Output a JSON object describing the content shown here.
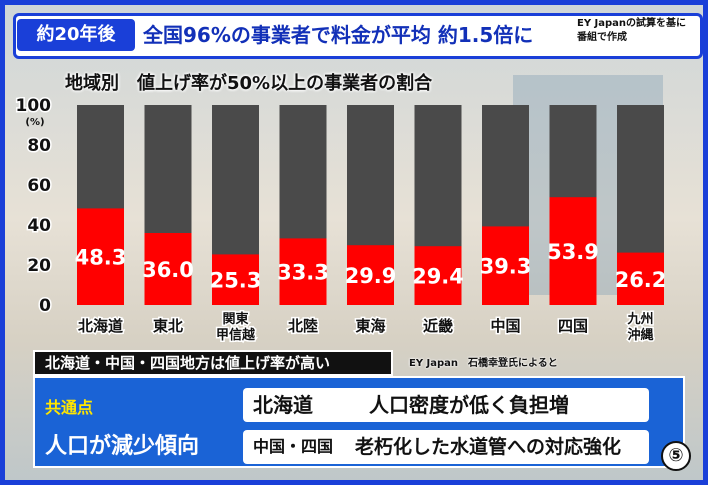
{
  "header": {
    "badge": "約20年後",
    "headline": "全国96%の事業者で料金が平均 約1.5倍に",
    "source_note_line1": "EY Japanの試算を基に",
    "source_note_line2": "番組で作成"
  },
  "chart_data": {
    "type": "bar",
    "title": "地域別　値上げ率が50%以上の事業者の割合",
    "categories": [
      "北海道",
      "東北",
      "関東甲信越",
      "北陸",
      "東海",
      "近畿",
      "中国",
      "四国",
      "九州沖縄"
    ],
    "category_lines": [
      [
        "北海道"
      ],
      [
        "東北"
      ],
      [
        "関東",
        "甲信越"
      ],
      [
        "北陸"
      ],
      [
        "東海"
      ],
      [
        "近畿"
      ],
      [
        "中国"
      ],
      [
        "四国"
      ],
      [
        "九州",
        "沖縄"
      ]
    ],
    "values": [
      48.3,
      36.0,
      25.3,
      33.3,
      29.9,
      29.4,
      39.3,
      53.9,
      26.2
    ],
    "value_labels": [
      "48.3",
      "36.0",
      "25.3",
      "33.3",
      "29.9",
      "29.4",
      "39.3",
      "53.9",
      "26.2"
    ],
    "ylim": [
      0,
      100
    ],
    "yticks": [
      0,
      20,
      40,
      60,
      80,
      100
    ],
    "yunit": "(%)",
    "colors": {
      "value": "#ff0000",
      "remainder": "#4a4a4a"
    }
  },
  "subhead": "北海道・中国・四国地方は値上げ率が高い",
  "attribution": "EY Japan　石橋幸登氏によると",
  "common_point": {
    "label": "共通点",
    "value": "人口が減少傾向"
  },
  "reasons": [
    {
      "region": "北海道",
      "desc": "人口密度が低く負担増"
    },
    {
      "region": "中国・四国",
      "desc": "老朽化した水道管への対応強化"
    }
  ],
  "page_number": "⑤"
}
